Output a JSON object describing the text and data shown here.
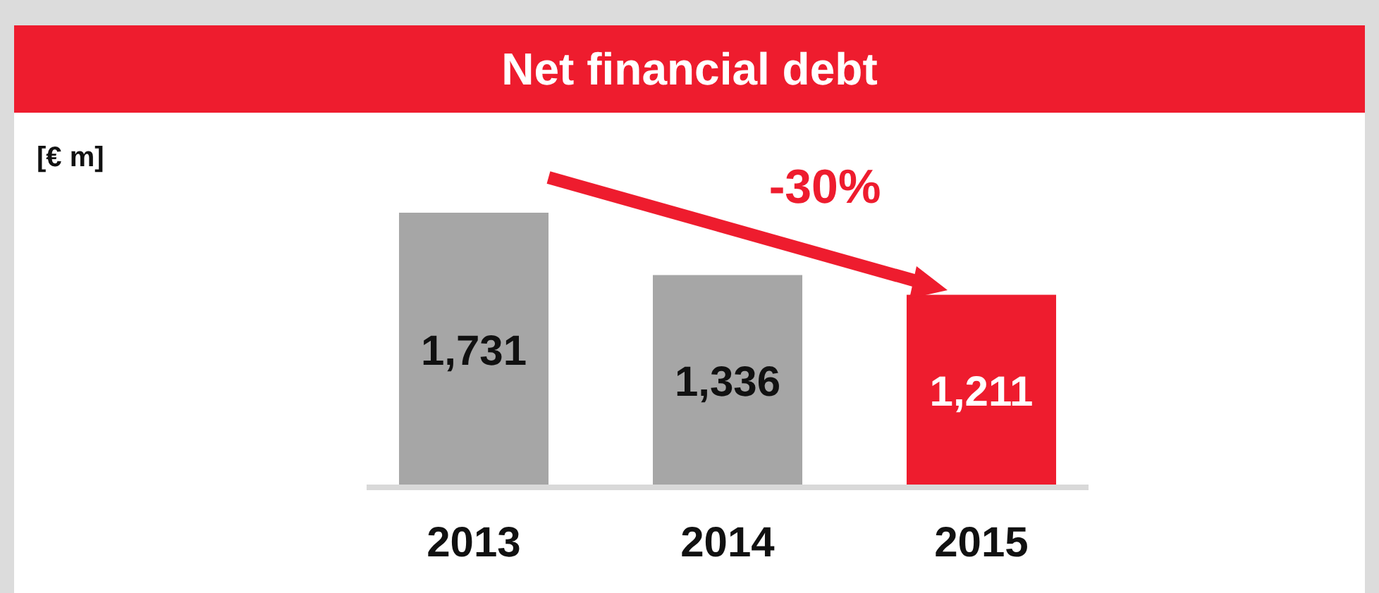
{
  "chart_data": {
    "type": "bar",
    "title": "Net financial debt",
    "categories": [
      "2013",
      "2014",
      "2015"
    ],
    "values": [
      1731,
      1336,
      1211
    ],
    "value_labels": [
      "1,731",
      "1,336",
      "1,211"
    ],
    "colors": [
      "#a6a6a6",
      "#a6a6a6",
      "#ee1c2e"
    ],
    "annotations": [
      "[€ m]",
      "-30%"
    ]
  }
}
